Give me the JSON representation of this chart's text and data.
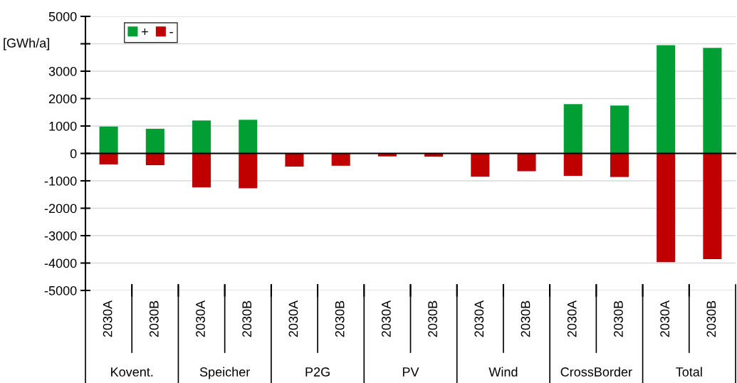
{
  "chart_data": {
    "type": "bar",
    "ylabel": "[GWh/a]",
    "categories": [
      "2030A",
      "2030B",
      "2030A",
      "2030B",
      "2030A",
      "2030B",
      "2030A",
      "2030B",
      "2030A",
      "2030B",
      "2030A",
      "2030B",
      "2030A",
      "2030B"
    ],
    "annotations": [
      "Kovent.",
      "Speicher",
      "P2G",
      "PV",
      "Wind",
      "CrossBorder",
      "Total"
    ],
    "series": [
      {
        "name": "+",
        "color": "#009e33",
        "values": [
          980,
          900,
          1200,
          1230,
          0,
          0,
          0,
          0,
          0,
          0,
          1800,
          1750,
          3950,
          3850
        ]
      },
      {
        "name": "-",
        "color": "#c00000",
        "values": [
          -400,
          -430,
          -1240,
          -1270,
          -480,
          -450,
          -110,
          -120,
          -850,
          -650,
          -820,
          -860,
          -3970,
          -3860
        ]
      }
    ],
    "ylim": [
      -5000,
      5000
    ],
    "yticks": [
      -5000,
      -4000,
      -3000,
      -2000,
      -1000,
      0,
      1000,
      2000,
      3000,
      {
        "value": 4000,
        "label": null
      },
      5000
    ],
    "stacked": true,
    "grid": "y",
    "legend": "top left"
  }
}
